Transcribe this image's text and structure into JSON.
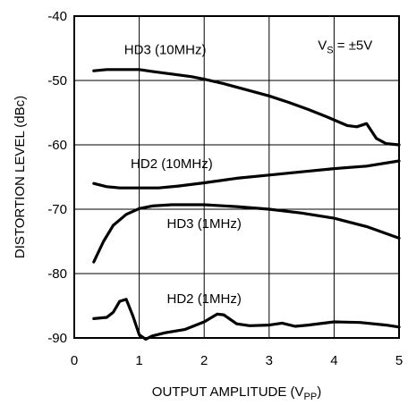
{
  "chart_data": {
    "type": "line",
    "title": "",
    "xlabel_main": "OUTPUT AMPLITUDE (V",
    "xlabel_sub": "PP",
    "xlabel_end": ")",
    "ylabel": "DISTORTION LEVEL (dBc)",
    "xlim": [
      0,
      5
    ],
    "ylim": [
      -90,
      -40
    ],
    "xticks": [
      0,
      1,
      2,
      3,
      4,
      5
    ],
    "yticks": [
      -90,
      -80,
      -70,
      -60,
      -50,
      -40
    ],
    "grid": true,
    "annotation": {
      "main": "V",
      "sub": "S",
      "rest": " = ±5V"
    },
    "series": [
      {
        "name": "HD3 (10MHz)",
        "x": [
          0.3,
          0.5,
          0.7,
          0.9,
          1.0,
          1.2,
          1.5,
          1.8,
          2.0,
          2.3,
          2.6,
          3.0,
          3.3,
          3.6,
          3.9,
          4.2,
          4.35,
          4.5,
          4.65,
          4.8,
          5.0
        ],
        "y": [
          -48.5,
          -48.3,
          -48.3,
          -48.3,
          -48.3,
          -48.6,
          -49.0,
          -49.4,
          -49.8,
          -50.5,
          -51.3,
          -52.4,
          -53.4,
          -54.5,
          -55.7,
          -57.0,
          -57.2,
          -56.7,
          -59.0,
          -59.8,
          -60.0
        ]
      },
      {
        "name": "HD2 (10MHz)",
        "x": [
          0.3,
          0.5,
          0.7,
          1.0,
          1.3,
          1.6,
          2.0,
          2.5,
          3.0,
          3.5,
          4.0,
          4.5,
          5.0
        ],
        "y": [
          -66.0,
          -66.5,
          -66.7,
          -66.7,
          -66.7,
          -66.4,
          -65.9,
          -65.2,
          -64.7,
          -64.2,
          -63.7,
          -63.3,
          -62.5
        ]
      },
      {
        "name": "HD3 (1MHz)",
        "x": [
          0.3,
          0.45,
          0.6,
          0.8,
          1.0,
          1.2,
          1.5,
          2.0,
          2.5,
          3.0,
          3.5,
          4.0,
          4.5,
          5.0
        ],
        "y": [
          -78.2,
          -75.0,
          -72.5,
          -70.8,
          -69.9,
          -69.5,
          -69.3,
          -69.3,
          -69.6,
          -70.0,
          -70.6,
          -71.4,
          -72.7,
          -74.5
        ]
      },
      {
        "name": "HD2 (1MHz)",
        "x": [
          0.3,
          0.5,
          0.6,
          0.7,
          0.8,
          0.9,
          1.0,
          1.1,
          1.2,
          1.4,
          1.7,
          2.0,
          2.2,
          2.3,
          2.5,
          2.7,
          3.0,
          3.2,
          3.4,
          3.6,
          4.0,
          4.4,
          4.8,
          5.0
        ],
        "y": [
          -87.0,
          -86.8,
          -86.0,
          -84.3,
          -84.0,
          -86.5,
          -89.5,
          -90.2,
          -89.7,
          -89.2,
          -88.7,
          -87.5,
          -86.3,
          -86.4,
          -87.8,
          -88.1,
          -88.0,
          -87.7,
          -88.2,
          -88.0,
          -87.5,
          -87.6,
          -88.0,
          -88.3
        ]
      }
    ],
    "series_label_positions": [
      {
        "x": 1.4,
        "y": -45.9
      },
      {
        "x": 1.5,
        "y": -63.6
      },
      {
        "x": 2.0,
        "y": -72.9
      },
      {
        "x": 2.0,
        "y": -84.6
      }
    ],
    "annotation_position": {
      "x": 3.75,
      "y": -45.2
    }
  }
}
